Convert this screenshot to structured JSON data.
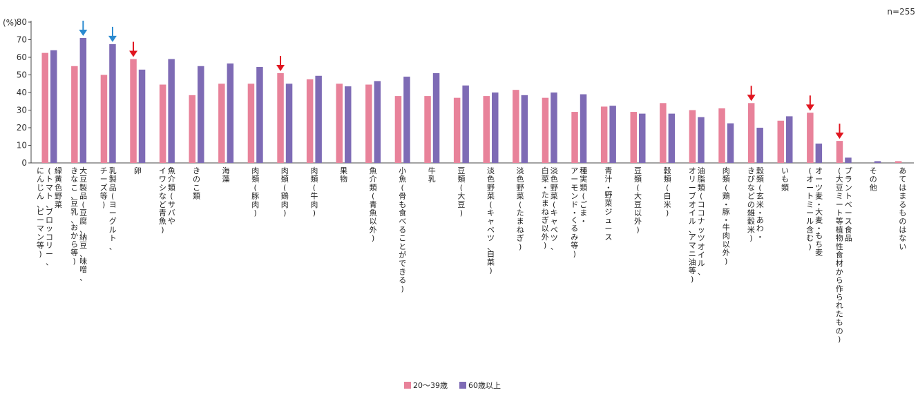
{
  "chart_data": {
    "type": "bar",
    "note": "n=255",
    "y_unit": "(%)",
    "ylim": [
      0,
      80
    ],
    "yticks": [
      0,
      10,
      20,
      30,
      40,
      50,
      60,
      70,
      80
    ],
    "grid": false,
    "legend_position": "bottom",
    "categories": [
      [
        "緑黄色野菜",
        "(トマト、ブロッコリー、",
        "にんじん、ピーマン等)"
      ],
      [
        "大豆製品(豆腐、納豆、味噌、",
        "きなこ、豆乳、おから等)"
      ],
      [
        "乳製品(ヨーグルト、",
        "チーズ等)"
      ],
      [
        "卵"
      ],
      [
        "魚介類(サバや",
        "イワシなど青魚)"
      ],
      [
        "きのこ類"
      ],
      [
        "海藻"
      ],
      [
        "肉類(豚肉)"
      ],
      [
        "肉類(鶏肉)"
      ],
      [
        "肉類(牛肉)"
      ],
      [
        "果物"
      ],
      [
        "魚介類(青魚以外)"
      ],
      [
        "小魚(骨も食べることができる)"
      ],
      [
        "牛乳"
      ],
      [
        "豆類(大豆)"
      ],
      [
        "淡色野菜(キャベツ、白菜)"
      ],
      [
        "淡色野菜(たまねぎ)"
      ],
      [
        "淡色野菜(キャベツ、",
        "白菜・たまねぎ以外)"
      ],
      [
        "種実類(ごま・",
        "アーモンド・くるみ等)"
      ],
      [
        "青汁・野菜ジュース"
      ],
      [
        "豆類(大豆以外)"
      ],
      [
        "穀類(白米)"
      ],
      [
        "油脂類(ココナッツオイル、",
        "オリーブオイル、アマニ油等)"
      ],
      [
        "肉類(鶏・豚・牛肉以外)"
      ],
      [
        "穀類(玄米・あわ・",
        "きびなどの雑穀米)"
      ],
      [
        "いも類"
      ],
      [
        "オーツ麦・大麦・もち麦",
        "(オートミール含む)"
      ],
      [
        "プラントベース食品",
        "(大豆ミート等植物性食材から作られたもの)"
      ],
      [
        "その他"
      ],
      [
        "あてはまるものはない"
      ]
    ],
    "series": [
      {
        "name": "20〜39歳",
        "color": "#e8829a",
        "values": [
          62.5,
          55,
          50,
          59,
          44.5,
          38.5,
          45,
          45,
          51,
          47.5,
          45,
          44.5,
          38,
          38,
          37,
          38,
          41.5,
          37,
          29,
          32,
          29,
          34,
          30,
          31,
          34,
          24,
          28.5,
          12.5,
          0,
          1
        ]
      },
      {
        "name": "60歳以上",
        "color": "#7e6bb5",
        "values": [
          64,
          71,
          67.5,
          53,
          59,
          55,
          56.5,
          54.5,
          45,
          49.5,
          43.5,
          46.5,
          49,
          51,
          44,
          40,
          38.5,
          40,
          39,
          32.5,
          28,
          28,
          26,
          22.5,
          20,
          26.5,
          11,
          3,
          1,
          0
        ]
      }
    ],
    "annotations": [
      {
        "type": "arrow",
        "color": "#2a8ad0",
        "category_index": 1,
        "series_index": 1
      },
      {
        "type": "arrow",
        "color": "#2a8ad0",
        "category_index": 2,
        "series_index": 1
      },
      {
        "type": "arrow",
        "color": "#e0151f",
        "category_index": 3,
        "series_index": 0
      },
      {
        "type": "arrow",
        "color": "#e0151f",
        "category_index": 8,
        "series_index": 0
      },
      {
        "type": "arrow",
        "color": "#e0151f",
        "category_index": 24,
        "series_index": 0
      },
      {
        "type": "arrow",
        "color": "#e0151f",
        "category_index": 26,
        "series_index": 0
      },
      {
        "type": "arrow",
        "color": "#e0151f",
        "category_index": 27,
        "series_index": 0
      }
    ]
  }
}
